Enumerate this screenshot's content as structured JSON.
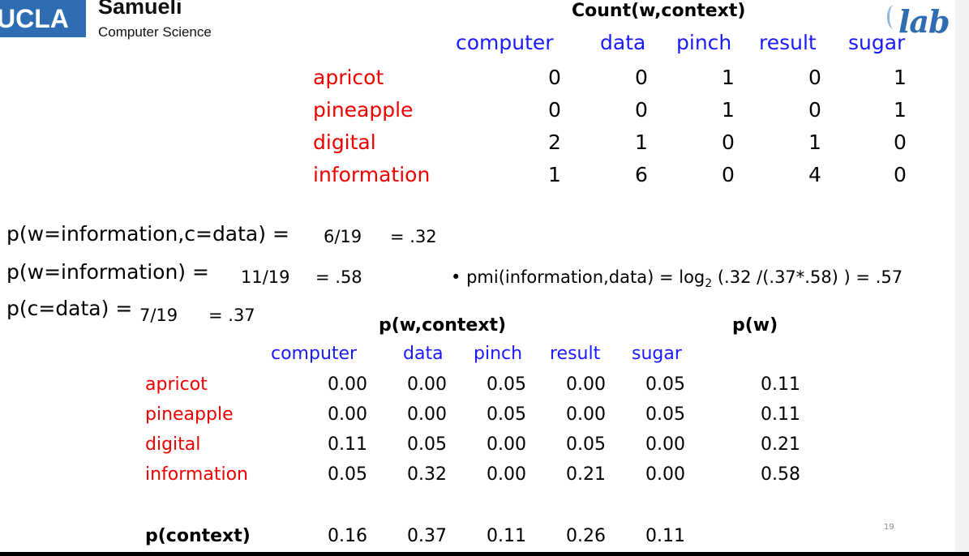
{
  "logo": {
    "ucla": "UCLA",
    "name": "Samueli",
    "sub": "Computer Science",
    "lab": "lab"
  },
  "count_table": {
    "title": "Count(w,context)",
    "columns": [
      "computer",
      "data",
      "pinch",
      "result",
      "sugar"
    ],
    "rows": [
      {
        "word": "apricot",
        "values": [
          "0",
          "0",
          "1",
          "0",
          "1"
        ]
      },
      {
        "word": "pineapple",
        "values": [
          "0",
          "0",
          "1",
          "0",
          "1"
        ]
      },
      {
        "word": "digital",
        "values": [
          "2",
          "1",
          "0",
          "1",
          "0"
        ]
      },
      {
        "word": "information",
        "values": [
          "1",
          "6",
          "0",
          "4",
          "0"
        ]
      }
    ]
  },
  "formulas": {
    "joint_label": "p(w=information,c=data) =",
    "joint_frac": "6/19",
    "joint_val": "= .32",
    "pw_label": "p(w=information) =",
    "pw_frac": "11/19",
    "pw_val": "= .58",
    "pc_label": "p(c=data) =",
    "pc_frac": "7/19",
    "pc_val": "= .37",
    "pmi_bullet": "•",
    "pmi_left": "pmi(information,data) =",
    "pmi_log": "log",
    "pmi_sub": "2",
    "pmi_right": "(.32 /(.37*.58) ) = .57"
  },
  "prob_table": {
    "title": "p(w,context)",
    "pw_title": "p(w)",
    "columns": [
      "computer",
      "data",
      "pinch",
      "result",
      "sugar"
    ],
    "rows": [
      {
        "word": "apricot",
        "values": [
          "0.00",
          "0.00",
          "0.05",
          "0.00",
          "0.05"
        ],
        "pw": "0.11"
      },
      {
        "word": "pineapple",
        "values": [
          "0.00",
          "0.00",
          "0.05",
          "0.00",
          "0.05"
        ],
        "pw": "0.11"
      },
      {
        "word": "digital",
        "values": [
          "0.11",
          "0.05",
          "0.00",
          "0.05",
          "0.00"
        ],
        "pw": "0.21"
      },
      {
        "word": "information",
        "values": [
          "0.05",
          "0.32",
          "0.00",
          "0.21",
          "0.00"
        ],
        "pw": "0.58"
      }
    ],
    "context_label": "p(context)",
    "context_values": [
      "0.16",
      "0.37",
      "0.11",
      "0.26",
      "0.11"
    ]
  },
  "page_number": "19",
  "colors": {
    "word": "#ee0000",
    "context": "#1a1aff",
    "brand": "#2f6db3"
  }
}
